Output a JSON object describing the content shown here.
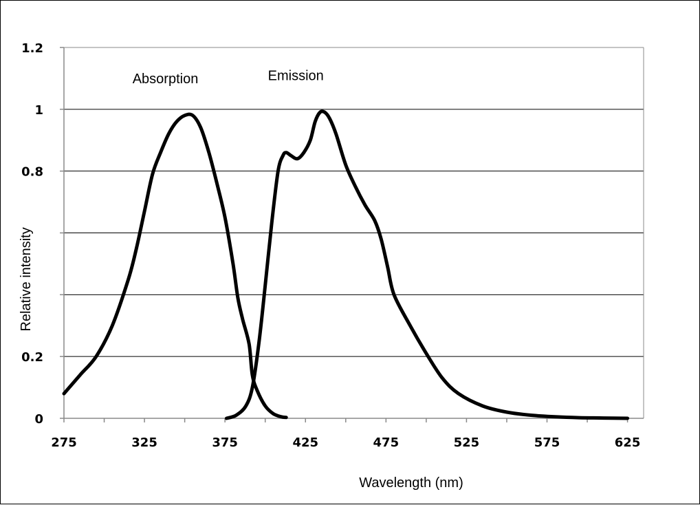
{
  "chart_data": {
    "type": "line",
    "xlabel": "Wavelength (nm)",
    "ylabel": "Relative intensity",
    "xlim": [
      275,
      635
    ],
    "ylim": [
      0,
      1.2
    ],
    "x_ticks": [
      275,
      325,
      375,
      425,
      475,
      525,
      575,
      625
    ],
    "x_tick_labels": [
      "275",
      "325",
      "375",
      "425",
      "475",
      "525",
      "575",
      "625"
    ],
    "y_ticks": [
      0,
      0.2,
      0.4,
      0.6,
      0.8,
      1,
      1.2
    ],
    "y_tick_labels": [
      "0",
      "0.2",
      "",
      "",
      "0.8",
      "1",
      "1.2"
    ],
    "grid": "horizontal",
    "annotations": [
      {
        "text": "Absorption",
        "x": 338,
        "y": 1.1
      },
      {
        "text": "Emission",
        "x": 419,
        "y": 1.11
      }
    ],
    "series": [
      {
        "label": "Absorption",
        "x": [
          275,
          285,
          295,
          305,
          315,
          320,
          325,
          330,
          335,
          340,
          345,
          350,
          355,
          360,
          365,
          370,
          375,
          380,
          383,
          386,
          390,
          392,
          395,
          400,
          405,
          410,
          413
        ],
        "y": [
          0.08,
          0.14,
          0.2,
          0.3,
          0.45,
          0.55,
          0.67,
          0.79,
          0.86,
          0.92,
          0.96,
          0.98,
          0.98,
          0.94,
          0.86,
          0.76,
          0.65,
          0.5,
          0.39,
          0.32,
          0.24,
          0.14,
          0.09,
          0.04,
          0.015,
          0.005,
          0.003
        ]
      },
      {
        "label": "Emission",
        "x": [
          376,
          382,
          388,
          392,
          396,
          400,
          404,
          408,
          411,
          413,
          416,
          420,
          424,
          428,
          431,
          434,
          437,
          440,
          444,
          450,
          456,
          462,
          468,
          472,
          476,
          480,
          490,
          500,
          510,
          520,
          535,
          550,
          565,
          580,
          595,
          610,
          625
        ],
        "y": [
          0.0,
          0.01,
          0.04,
          0.1,
          0.24,
          0.43,
          0.63,
          0.8,
          0.85,
          0.86,
          0.85,
          0.84,
          0.86,
          0.9,
          0.96,
          0.99,
          0.99,
          0.97,
          0.92,
          0.82,
          0.75,
          0.69,
          0.64,
          0.58,
          0.49,
          0.4,
          0.3,
          0.21,
          0.13,
          0.08,
          0.04,
          0.02,
          0.01,
          0.005,
          0.002,
          0.001,
          0.0
        ]
      }
    ]
  }
}
